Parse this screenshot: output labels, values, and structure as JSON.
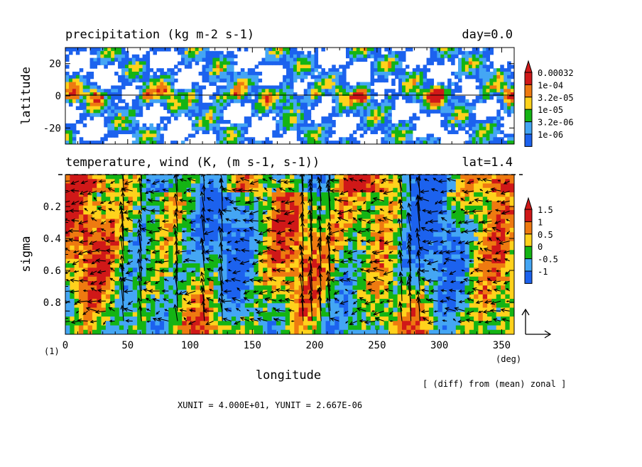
{
  "chart_data": [
    {
      "type": "heatmap",
      "title": "precipitation (kg m-2 s-1)",
      "title_right": "day=0.0",
      "ylabel": "latitude",
      "xlim": [
        0,
        360
      ],
      "ylim": [
        -30,
        30
      ],
      "yticks": [
        "20",
        "0",
        "-20"
      ],
      "ytick_values": [
        20,
        0,
        -20
      ],
      "zero_line": true,
      "colorbar": {
        "labels": [
          "0.00032",
          "1e-04",
          "3.2e-05",
          "1e-05",
          "3.2e-06",
          "1e-06"
        ],
        "colors": [
          "#d01818",
          "#ee7a10",
          "#ffd21c",
          "#14b414",
          "#44a6f4",
          "#1c62ee"
        ]
      },
      "colors": {
        "lowest": "#ffffff",
        "levels": [
          "#1c62ee",
          "#44a6f4",
          "#14b414",
          "#ffd21c",
          "#ee7a10",
          "#d01818"
        ]
      }
    },
    {
      "type": "heatmap",
      "title": "temperature, wind (K, (m s-1, s-1))",
      "title_right": "lat=1.4",
      "xlabel": "longitude",
      "xunit": "(deg)",
      "ylabel": "sigma",
      "xlim": [
        0,
        360
      ],
      "ylim": [
        1.0,
        0.0
      ],
      "xticks": [
        "0",
        "50",
        "100",
        "150",
        "200",
        "250",
        "300",
        "350"
      ],
      "xtick_values": [
        0,
        50,
        100,
        150,
        200,
        250,
        300,
        350
      ],
      "yticks": [
        "0.2",
        "0.4",
        "0.6",
        "0.8"
      ],
      "ytick_values": [
        0.2,
        0.4,
        0.6,
        0.8
      ],
      "colorbar": {
        "labels": [
          "1.5",
          "1",
          "0.5",
          "0",
          "-0.5",
          "-1"
        ],
        "colors": [
          "#d01818",
          "#ee7a10",
          "#ffd21c",
          "#14b414",
          "#44a6f4",
          "#1c62ee"
        ]
      },
      "vectors": "wind arrows (black)",
      "reference_vector_label": "",
      "frame_label": "(1)"
    }
  ],
  "footer": {
    "diff_note": "[ (diff) from (mean) zonal ]",
    "units": "XUNIT = 4.000E+01, YUNIT = 2.667E-06"
  }
}
